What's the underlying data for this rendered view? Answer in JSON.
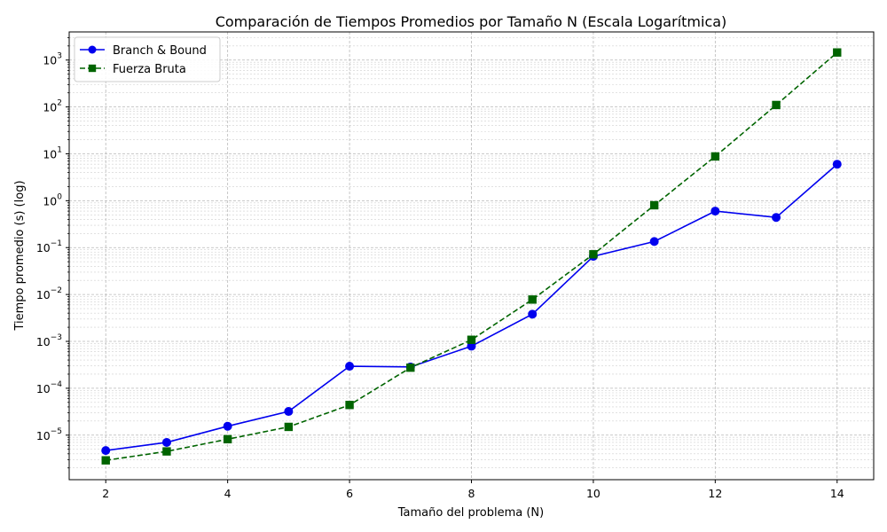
{
  "chart_data": {
    "type": "line",
    "title": "Comparación de Tiempos Promedios por Tamaño N (Escala Logarítmica)",
    "xlabel": "Tamaño del problema (N)",
    "ylabel": "Tiempo promedio (s) (log)",
    "x": [
      2,
      3,
      4,
      5,
      6,
      7,
      8,
      9,
      10,
      11,
      12,
      13,
      14
    ],
    "xlim": [
      1.4,
      14.6
    ],
    "ylim_log10": [
      -5.95,
      3.6
    ],
    "yscale": "log",
    "grid": "major and minor, dashed",
    "legend_position": "top-left",
    "x_ticks": [
      {
        "value": 2,
        "label": "2"
      },
      {
        "value": 4,
        "label": "4"
      },
      {
        "value": 6,
        "label": "6"
      },
      {
        "value": 8,
        "label": "8"
      },
      {
        "value": 10,
        "label": "10"
      },
      {
        "value": 12,
        "label": "12"
      },
      {
        "value": 14,
        "label": "14"
      }
    ],
    "y_ticks": [
      {
        "exp": -5,
        "base": "10",
        "sup": "−5"
      },
      {
        "exp": -4,
        "base": "10",
        "sup": "−4"
      },
      {
        "exp": -3,
        "base": "10",
        "sup": "−3"
      },
      {
        "exp": -2,
        "base": "10",
        "sup": "−2"
      },
      {
        "exp": -1,
        "base": "10",
        "sup": "−1"
      },
      {
        "exp": 0,
        "base": "10",
        "sup": "0"
      },
      {
        "exp": 1,
        "base": "10",
        "sup": "1"
      },
      {
        "exp": 2,
        "base": "10",
        "sup": "2"
      },
      {
        "exp": 3,
        "base": "10",
        "sup": "3"
      }
    ],
    "series": [
      {
        "name": "Branch & Bound",
        "color": "#0000ee",
        "marker": "circle",
        "linestyle": "solid",
        "values": [
          4.7e-06,
          7e-06,
          1.55e-05,
          3.2e-05,
          0.000295,
          0.000285,
          0.00079,
          0.0038,
          0.065,
          0.135,
          0.6,
          0.44,
          6.0
        ]
      },
      {
        "name": "Fuerza Bruta",
        "color": "#006400",
        "marker": "square",
        "linestyle": "dashed",
        "values": [
          2.9e-06,
          4.5e-06,
          8.2e-06,
          1.5e-05,
          4.4e-05,
          0.000275,
          0.00108,
          0.0078,
          0.072,
          0.8,
          8.8,
          110,
          1450
        ]
      }
    ]
  }
}
